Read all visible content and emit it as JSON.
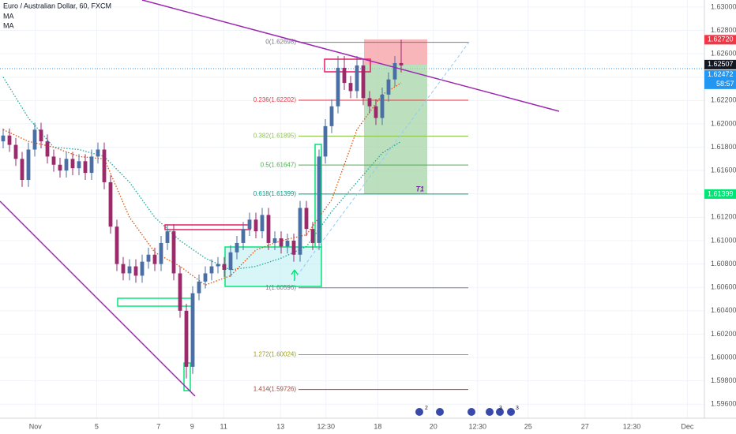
{
  "chart_data": {
    "type": "candlestick",
    "title": "Euro / Australian Dollar, 60, FXCM",
    "up_color": "#4a6fa5",
    "down_color": "#9c2a6a",
    "x": [
      0,
      1,
      2,
      3,
      4,
      5,
      6,
      7,
      8,
      9,
      10,
      11,
      12,
      13,
      14,
      15,
      16,
      17,
      18,
      19,
      20,
      21,
      22,
      23,
      24,
      25,
      26,
      27,
      28,
      29,
      30,
      31,
      32,
      33,
      34,
      35,
      36,
      37,
      38,
      39,
      40,
      41,
      42,
      43,
      44,
      45,
      46,
      47,
      48,
      49,
      50,
      51,
      52,
      53,
      54,
      55,
      56,
      57,
      58,
      59,
      60,
      61,
      62,
      63
    ],
    "open": [
      1.6185,
      1.619,
      1.6182,
      1.617,
      1.6152,
      1.6178,
      1.6195,
      1.6185,
      1.6172,
      1.6165,
      1.616,
      1.617,
      1.6162,
      1.6168,
      1.6158,
      1.6172,
      1.6178,
      1.615,
      1.6112,
      1.608,
      1.6072,
      1.6078,
      1.607,
      1.6082,
      1.6088,
      1.608,
      1.6098,
      1.6108,
      1.6072,
      1.604,
      1.5992,
      1.6055,
      1.6065,
      1.6072,
      1.6078,
      1.608,
      1.6075,
      1.609,
      1.6098,
      1.611,
      1.6118,
      1.6108,
      1.6122,
      1.6098,
      1.6102,
      1.6095,
      1.61,
      1.6088,
      1.6128,
      1.611,
      1.6098,
      1.6172,
      1.6198,
      1.6215,
      1.6248,
      1.6235,
      1.6228,
      1.625,
      1.6222,
      1.6215,
      1.6205,
      1.6225,
      1.6238,
      1.6252
    ],
    "high": [
      1.6196,
      1.6196,
      1.6188,
      1.6176,
      1.6184,
      1.6201,
      1.6201,
      1.6191,
      1.6178,
      1.6171,
      1.6176,
      1.6176,
      1.6174,
      1.6174,
      1.6178,
      1.6184,
      1.6184,
      1.6156,
      1.6118,
      1.6086,
      1.6084,
      1.6084,
      1.6088,
      1.6094,
      1.6094,
      1.6104,
      1.6114,
      1.6114,
      1.6078,
      1.6046,
      1.6061,
      1.6071,
      1.6078,
      1.6084,
      1.6086,
      1.6086,
      1.6096,
      1.6104,
      1.6116,
      1.6124,
      1.6124,
      1.6128,
      1.6128,
      1.6108,
      1.6108,
      1.6106,
      1.6106,
      1.6134,
      1.6134,
      1.6116,
      1.6178,
      1.6204,
      1.6221,
      1.6258,
      1.6258,
      1.6241,
      1.6258,
      1.6256,
      1.6228,
      1.6221,
      1.6231,
      1.6244,
      1.6258,
      1.6272
    ],
    "low": [
      1.6179,
      1.6176,
      1.6164,
      1.6146,
      1.6146,
      1.6172,
      1.6179,
      1.6166,
      1.6159,
      1.6154,
      1.6154,
      1.6156,
      1.6156,
      1.6152,
      1.6152,
      1.6166,
      1.6144,
      1.6106,
      1.6074,
      1.6066,
      1.6066,
      1.6064,
      1.6064,
      1.6076,
      1.6074,
      1.6074,
      1.6092,
      1.6066,
      1.6034,
      1.5982,
      1.5986,
      1.6049,
      1.6059,
      1.6066,
      1.6072,
      1.6069,
      1.6069,
      1.6084,
      1.6092,
      1.6104,
      1.6102,
      1.6102,
      1.6092,
      1.6092,
      1.6089,
      1.6089,
      1.6082,
      1.6082,
      1.6104,
      1.6092,
      1.6092,
      1.6166,
      1.6192,
      1.6209,
      1.6229,
      1.6222,
      1.6222,
      1.6216,
      1.6209,
      1.6199,
      1.6199,
      1.6219,
      1.6232,
      1.6244
    ],
    "close": [
      1.619,
      1.6182,
      1.617,
      1.6152,
      1.6178,
      1.6195,
      1.6185,
      1.6172,
      1.6165,
      1.616,
      1.617,
      1.6162,
      1.6168,
      1.6158,
      1.6172,
      1.6178,
      1.615,
      1.6112,
      1.608,
      1.6072,
      1.6078,
      1.607,
      1.6082,
      1.6088,
      1.608,
      1.6098,
      1.6108,
      1.6072,
      1.604,
      1.5992,
      1.6055,
      1.6065,
      1.6072,
      1.6078,
      1.608,
      1.6075,
      1.609,
      1.6098,
      1.611,
      1.6118,
      1.6108,
      1.6122,
      1.6098,
      1.6102,
      1.6095,
      1.61,
      1.6088,
      1.6128,
      1.611,
      1.6098,
      1.6172,
      1.6198,
      1.6215,
      1.6248,
      1.6235,
      1.6228,
      1.625,
      1.6222,
      1.6215,
      1.6205,
      1.6225,
      1.6238,
      1.6252,
      1.625
    ],
    "ma_series": [
      {
        "name": "MA",
        "color": "#e65100",
        "x": [
          0,
          4,
          8,
          12,
          16,
          20,
          24,
          28,
          32,
          36,
          40,
          44,
          48,
          52,
          56,
          60,
          63
        ],
        "values": [
          1.6195,
          1.6185,
          1.618,
          1.6172,
          1.617,
          1.612,
          1.609,
          1.6078,
          1.6062,
          1.607,
          1.6092,
          1.61,
          1.6105,
          1.6135,
          1.6195,
          1.6225,
          1.6235
        ]
      },
      {
        "name": "MA",
        "color": "#26a69a",
        "x": [
          0,
          4,
          8,
          12,
          16,
          20,
          24,
          28,
          32,
          36,
          40,
          44,
          48,
          52,
          56,
          60,
          63
        ],
        "values": [
          1.624,
          1.6205,
          1.618,
          1.6178,
          1.6172,
          1.615,
          1.612,
          1.61,
          1.6085,
          1.6075,
          1.6078,
          1.6085,
          1.6095,
          1.6125,
          1.615,
          1.6175,
          1.6185
        ]
      }
    ],
    "fib_levels": [
      {
        "label": "0(1.62698)",
        "value": 1.62698,
        "color": "#787b86"
      },
      {
        "label": "0.236(1.62202)",
        "value": 1.62202,
        "color": "#f23645"
      },
      {
        "label": "0.382(1.61895)",
        "value": 1.61895,
        "color": "#8bc34a"
      },
      {
        "label": "0.5(1.61647)",
        "value": 1.61647,
        "color": "#4caf50"
      },
      {
        "label": "0.618(1.61399)",
        "value": 1.61399,
        "color": "#089981"
      },
      {
        "label": "1(1.60596)",
        "value": 1.60596,
        "color": "#787b86"
      },
      {
        "label": "1.272(1.60024)",
        "value": 1.60024,
        "color": "#9e9d24"
      },
      {
        "label": "1.414(1.59726)",
        "value": 1.59726,
        "color": "#a1473a"
      }
    ],
    "price_labels": [
      {
        "value": 1.6272,
        "label": "1.62720",
        "color": "#f23645"
      },
      {
        "value": 1.62507,
        "label": "1.62507",
        "color": "#131722"
      },
      {
        "value": 1.62472,
        "label": "1.62472",
        "color": "#2196f3",
        "countdown": "58:57",
        "style": "dotted"
      },
      {
        "value": 1.61399,
        "label": "1.61399",
        "color": "#00e676"
      }
    ],
    "annotations": [
      "T1"
    ],
    "event_badges": [
      "2",
      "3",
      "3"
    ],
    "xlim": [
      -0.5,
      111
    ],
    "xticks": [
      {
        "value": 5.1,
        "label": "Nov"
      },
      {
        "value": 14.8,
        "label": "5"
      },
      {
        "value": 24.6,
        "label": "7"
      },
      {
        "value": 29.9,
        "label": "9"
      },
      {
        "value": 34.9,
        "label": "11"
      },
      {
        "value": 43.9,
        "label": "13"
      },
      {
        "value": 51.1,
        "label": "12:30"
      },
      {
        "value": 59.3,
        "label": "18"
      },
      {
        "value": 68.1,
        "label": "20"
      },
      {
        "value": 75.1,
        "label": "12:30"
      },
      {
        "value": 83.1,
        "label": "25"
      },
      {
        "value": 92.1,
        "label": "27"
      },
      {
        "value": 99.5,
        "label": "12:30"
      },
      {
        "value": 108.3,
        "label": "Dec"
      }
    ],
    "ylim": [
      1.5948,
      1.6306
    ],
    "yticks": [
      {
        "value": 1.63,
        "label": "1.63000"
      },
      {
        "value": 1.628,
        "label": "1.62800"
      },
      {
        "value": 1.626,
        "label": "1.62600"
      },
      {
        "value": 1.624,
        "label": "1.62400"
      },
      {
        "value": 1.622,
        "label": "1.62200"
      },
      {
        "value": 1.62,
        "label": "1.62000"
      },
      {
        "value": 1.618,
        "label": "1.61800"
      },
      {
        "value": 1.616,
        "label": "1.61600"
      },
      {
        "value": 1.614,
        "label": "1.61400"
      },
      {
        "value": 1.612,
        "label": "1.61200"
      },
      {
        "value": 1.61,
        "label": "1.61000"
      },
      {
        "value": 1.608,
        "label": "1.60800"
      },
      {
        "value": 1.606,
        "label": "1.60600"
      },
      {
        "value": 1.604,
        "label": "1.60400"
      },
      {
        "value": 1.602,
        "label": "1.60200"
      },
      {
        "value": 1.6,
        "label": "1.60000"
      },
      {
        "value": 1.598,
        "label": "1.59800"
      },
      {
        "value": 1.596,
        "label": "1.59600"
      }
    ],
    "grid": true
  }
}
